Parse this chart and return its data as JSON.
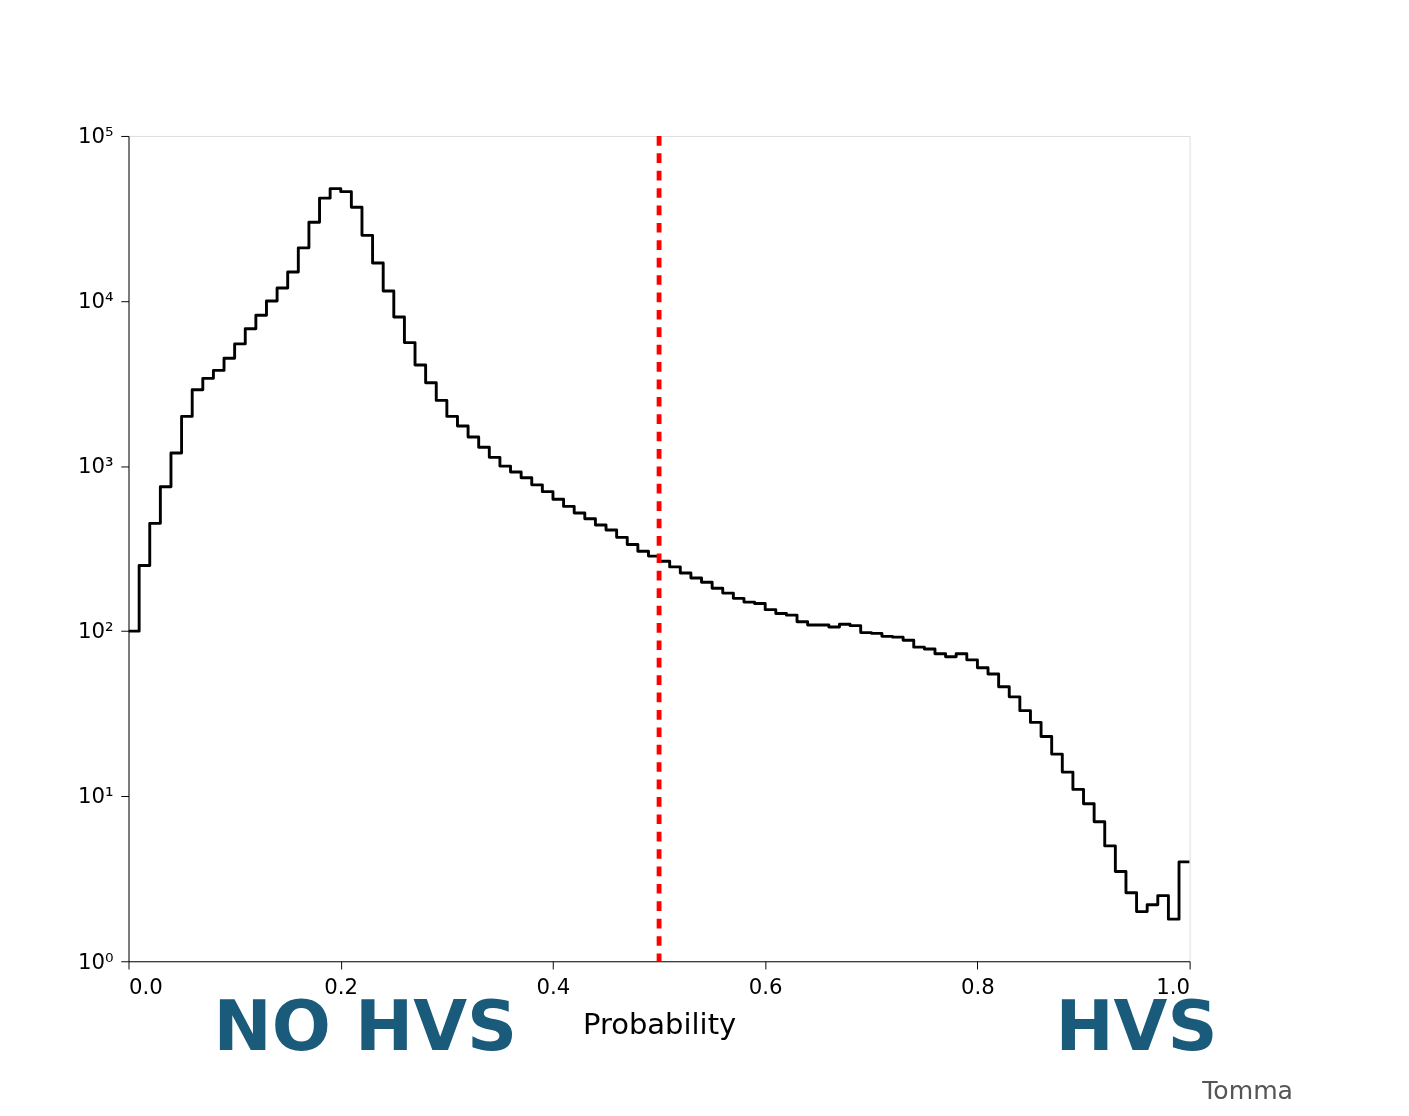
{
  "chart_data": {
    "type": "histogram",
    "xlabel": "Probability",
    "bins": [
      0.0,
      0.01,
      0.02,
      0.03,
      0.04,
      0.05,
      0.06,
      0.07,
      0.08,
      0.09,
      0.1,
      0.11,
      0.12,
      0.13,
      0.14,
      0.15,
      0.16,
      0.17,
      0.18,
      0.19,
      0.2,
      0.21,
      0.22,
      0.23,
      0.24,
      0.25,
      0.26,
      0.27,
      0.28,
      0.29,
      0.3,
      0.31,
      0.32,
      0.33,
      0.34,
      0.35,
      0.36,
      0.37,
      0.38,
      0.39,
      0.4,
      0.41,
      0.42,
      0.43,
      0.44,
      0.45,
      0.46,
      0.47,
      0.48,
      0.49,
      0.5,
      0.51,
      0.52,
      0.53,
      0.54,
      0.55,
      0.56,
      0.57,
      0.58,
      0.59,
      0.6,
      0.61,
      0.62,
      0.63,
      0.64,
      0.65,
      0.66,
      0.67,
      0.68,
      0.69,
      0.7,
      0.71,
      0.72,
      0.73,
      0.74,
      0.75,
      0.76,
      0.77,
      0.78,
      0.79,
      0.8,
      0.81,
      0.82,
      0.83,
      0.84,
      0.85,
      0.86,
      0.87,
      0.88,
      0.89,
      0.9,
      0.91,
      0.92,
      0.93,
      0.94,
      0.95,
      0.96,
      0.97,
      0.98,
      0.99,
      1.0
    ],
    "values": [
      100,
      250,
      450,
      750,
      1200,
      2000,
      2900,
      3400,
      3800,
      4500,
      5500,
      6800,
      8200,
      10000,
      12000,
      15000,
      21000,
      30000,
      42000,
      48000,
      46000,
      37000,
      25000,
      17000,
      11500,
      8000,
      5600,
      4100,
      3200,
      2500,
      2000,
      1750,
      1500,
      1300,
      1130,
      1000,
      920,
      850,
      770,
      700,
      630,
      570,
      520,
      480,
      440,
      410,
      370,
      335,
      305,
      285,
      265,
      245,
      225,
      210,
      198,
      182,
      170,
      158,
      150,
      147,
      135,
      128,
      125,
      114,
      109,
      109,
      106,
      110,
      108,
      98,
      97,
      93,
      92,
      88,
      80,
      78,
      73,
      70,
      73,
      67,
      60,
      55,
      46,
      40,
      33,
      28,
      23,
      18,
      14,
      11,
      9,
      7,
      5,
      3.5,
      2.6,
      2,
      2.2,
      2.5,
      1.8,
      4
    ],
    "color": "#000000",
    "xlim": [
      0.0,
      1.0
    ],
    "xticks": [
      {
        "value": 0.0,
        "label": "0.0"
      },
      0.2,
      0.4,
      0.6,
      0.8,
      {
        "value": 1.0,
        "label": "1.0"
      }
    ],
    "ylim": [
      1,
      100000
    ],
    "log": true,
    "yticks": [
      {
        "value": 1,
        "label": "10⁰"
      },
      {
        "value": 10,
        "label": "10¹"
      },
      {
        "value": 100,
        "label": "10²"
      },
      {
        "value": 1000,
        "label": "10³"
      },
      {
        "value": 10000,
        "label": "10⁴"
      },
      {
        "value": 100000,
        "label": "10⁵"
      }
    ],
    "grid": false,
    "ref_lines": [
      {
        "axis": "x",
        "value": 0.5,
        "color": "#ff0000",
        "line_style": "dashed"
      }
    ],
    "annotations": [
      "NO HVS",
      "HVS",
      "Tomma"
    ]
  }
}
